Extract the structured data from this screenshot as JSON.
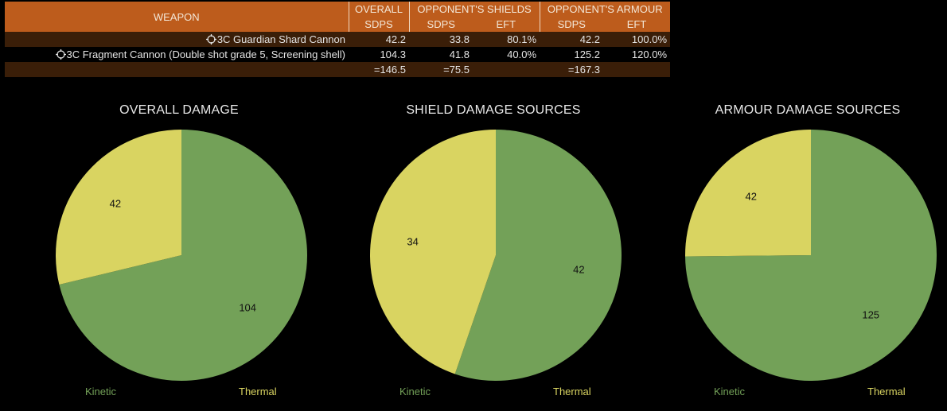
{
  "table": {
    "headers": {
      "weapon": "WEAPON",
      "overall": "OVERALL",
      "shields": "OPPONENT'S SHIELDS",
      "armour": "OPPONENT'S ARMOUR",
      "sdps": "SDPS",
      "eft": "EFT"
    },
    "rows": [
      {
        "weapon": "3C Guardian Shard Cannon",
        "overall_sdps": "42.2",
        "shield_sdps": "33.8",
        "shield_eft": "80.1%",
        "armour_sdps": "42.2",
        "armour_eft": "100.0%"
      },
      {
        "weapon": "3C Fragment Cannon (Double shot grade 5, Screening shell)",
        "overall_sdps": "104.3",
        "shield_sdps": "41.8",
        "shield_eft": "40.0%",
        "armour_sdps": "125.2",
        "armour_eft": "120.0%"
      }
    ],
    "totals": {
      "overall_sdps": "=146.5",
      "shield_sdps": "=75.5",
      "armour_sdps": "=167.3"
    }
  },
  "colors": {
    "kinetic": "#73a158",
    "thermal": "#d9d461",
    "header": "#bd5c1c",
    "row_dark": "#3a1e08"
  },
  "legend": {
    "kinetic": "Kinetic",
    "thermal": "Thermal"
  },
  "chart_data": [
    {
      "type": "pie",
      "title": "OVERALL DAMAGE",
      "categories": [
        "Kinetic",
        "Thermal"
      ],
      "values": [
        104,
        42
      ],
      "labels": [
        "104",
        "42"
      ]
    },
    {
      "type": "pie",
      "title": "SHIELD DAMAGE SOURCES",
      "categories": [
        "Kinetic",
        "Thermal"
      ],
      "values": [
        42,
        34
      ],
      "labels": [
        "42",
        "34"
      ]
    },
    {
      "type": "pie",
      "title": "ARMOUR DAMAGE SOURCES",
      "categories": [
        "Kinetic",
        "Thermal"
      ],
      "values": [
        125,
        42
      ],
      "labels": [
        "125",
        "42"
      ]
    }
  ]
}
